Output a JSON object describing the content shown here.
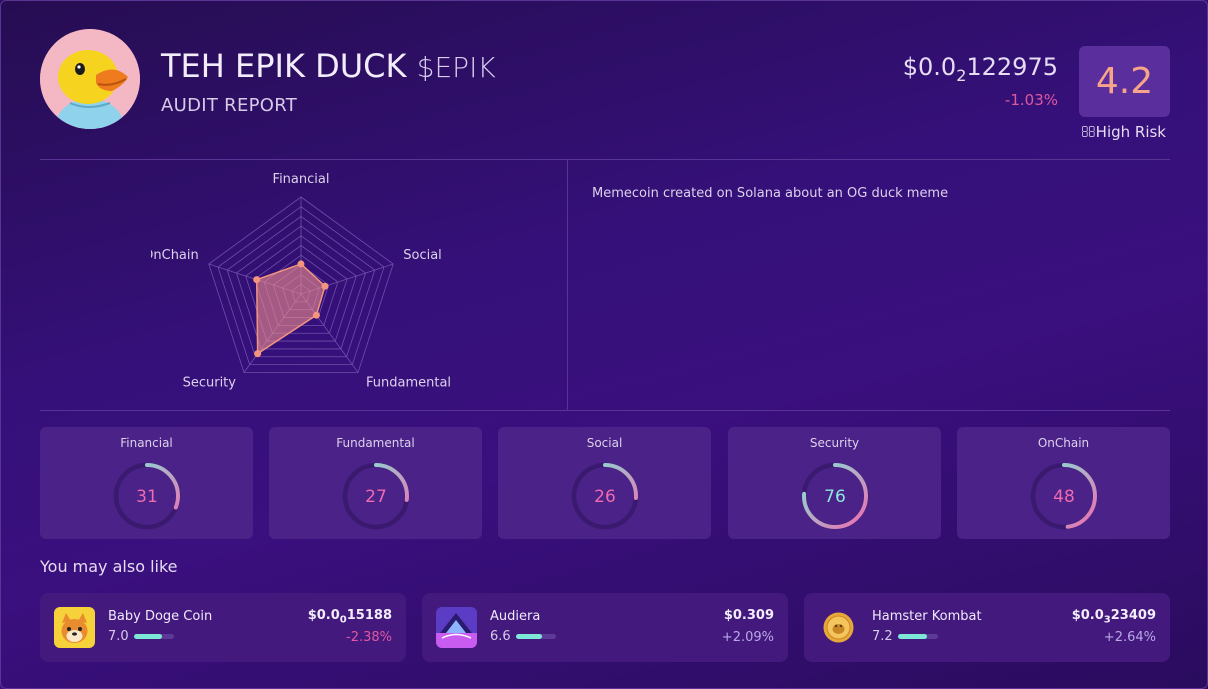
{
  "header": {
    "name": "TEH EPIK DUCK",
    "ticker": "$EPIK",
    "subtitle": "AUDIT REPORT",
    "price_prefix": "$0.0",
    "price_sub": "2",
    "price_rest": "122975",
    "change": "-1.03%",
    "score": "4.2",
    "risk": "High Risk"
  },
  "radar": {
    "axes": [
      "Financial",
      "Social",
      "Fundamental",
      "Security",
      "OnChain"
    ],
    "values": [
      31,
      26,
      27,
      76,
      48
    ],
    "max": 100
  },
  "description": "Memecoin created on Solana about an OG duck meme",
  "scores": [
    {
      "label": "Financial",
      "value": 31
    },
    {
      "label": "Fundamental",
      "value": 27
    },
    {
      "label": "Social",
      "value": 26
    },
    {
      "label": "Security",
      "value": 76
    },
    {
      "label": "OnChain",
      "value": 48
    }
  ],
  "also_like": {
    "heading": "You may also like",
    "items": [
      {
        "name": "Baby Doge Coin",
        "score": "7.0",
        "score_value": 7.0,
        "price_prefix": "$0.0",
        "price_sub": "0",
        "price_rest": "15188",
        "change": "-2.38%",
        "change_color": "#e0589f",
        "icon": "baby-doge-icon"
      },
      {
        "name": "Audiera",
        "score": "6.6",
        "score_value": 6.6,
        "price_prefix": "$0.309",
        "price_sub": "",
        "price_rest": "",
        "change": "+2.09%",
        "change_color": "#b9a9e6",
        "icon": "audiera-icon"
      },
      {
        "name": "Hamster Kombat",
        "score": "7.2",
        "score_value": 7.2,
        "price_prefix": "$0.0",
        "price_sub": "3",
        "price_rest": "23409",
        "change": "+2.64%",
        "change_color": "#b9a9e6",
        "icon": "hamster-coin-icon"
      }
    ]
  },
  "colors": {
    "accent_pink": "#e0589f",
    "score_orange": "#f7a48a",
    "gauge_teal": "#7ee8d8",
    "gauge_pink": "#f06ab0"
  }
}
